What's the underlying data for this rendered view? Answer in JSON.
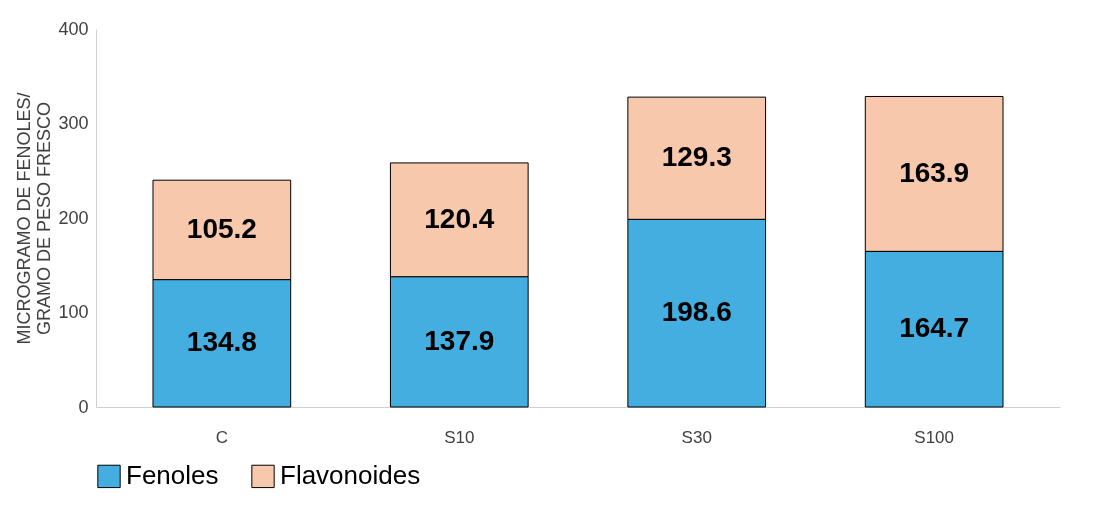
{
  "chart_data": {
    "type": "bar",
    "stacked": true,
    "ylabel": "MICROGRAMO DE FENOLES/\nGRAMO DE PESO FRESCO",
    "categories": [
      "C",
      "S10",
      "S30",
      "S100"
    ],
    "series": [
      {
        "name": "Fenoles",
        "color": "#45aee0",
        "values": [
          134.8,
          137.9,
          198.6,
          164.7
        ]
      },
      {
        "name": "Flavonoides",
        "color": "#f7c8ac",
        "values": [
          105.2,
          120.4,
          129.3,
          163.9
        ]
      }
    ],
    "ylim": [
      0,
      400
    ],
    "yticks": [
      0,
      100,
      200,
      300,
      400
    ],
    "grid": false,
    "legend": "bottom",
    "data_labels": true
  }
}
